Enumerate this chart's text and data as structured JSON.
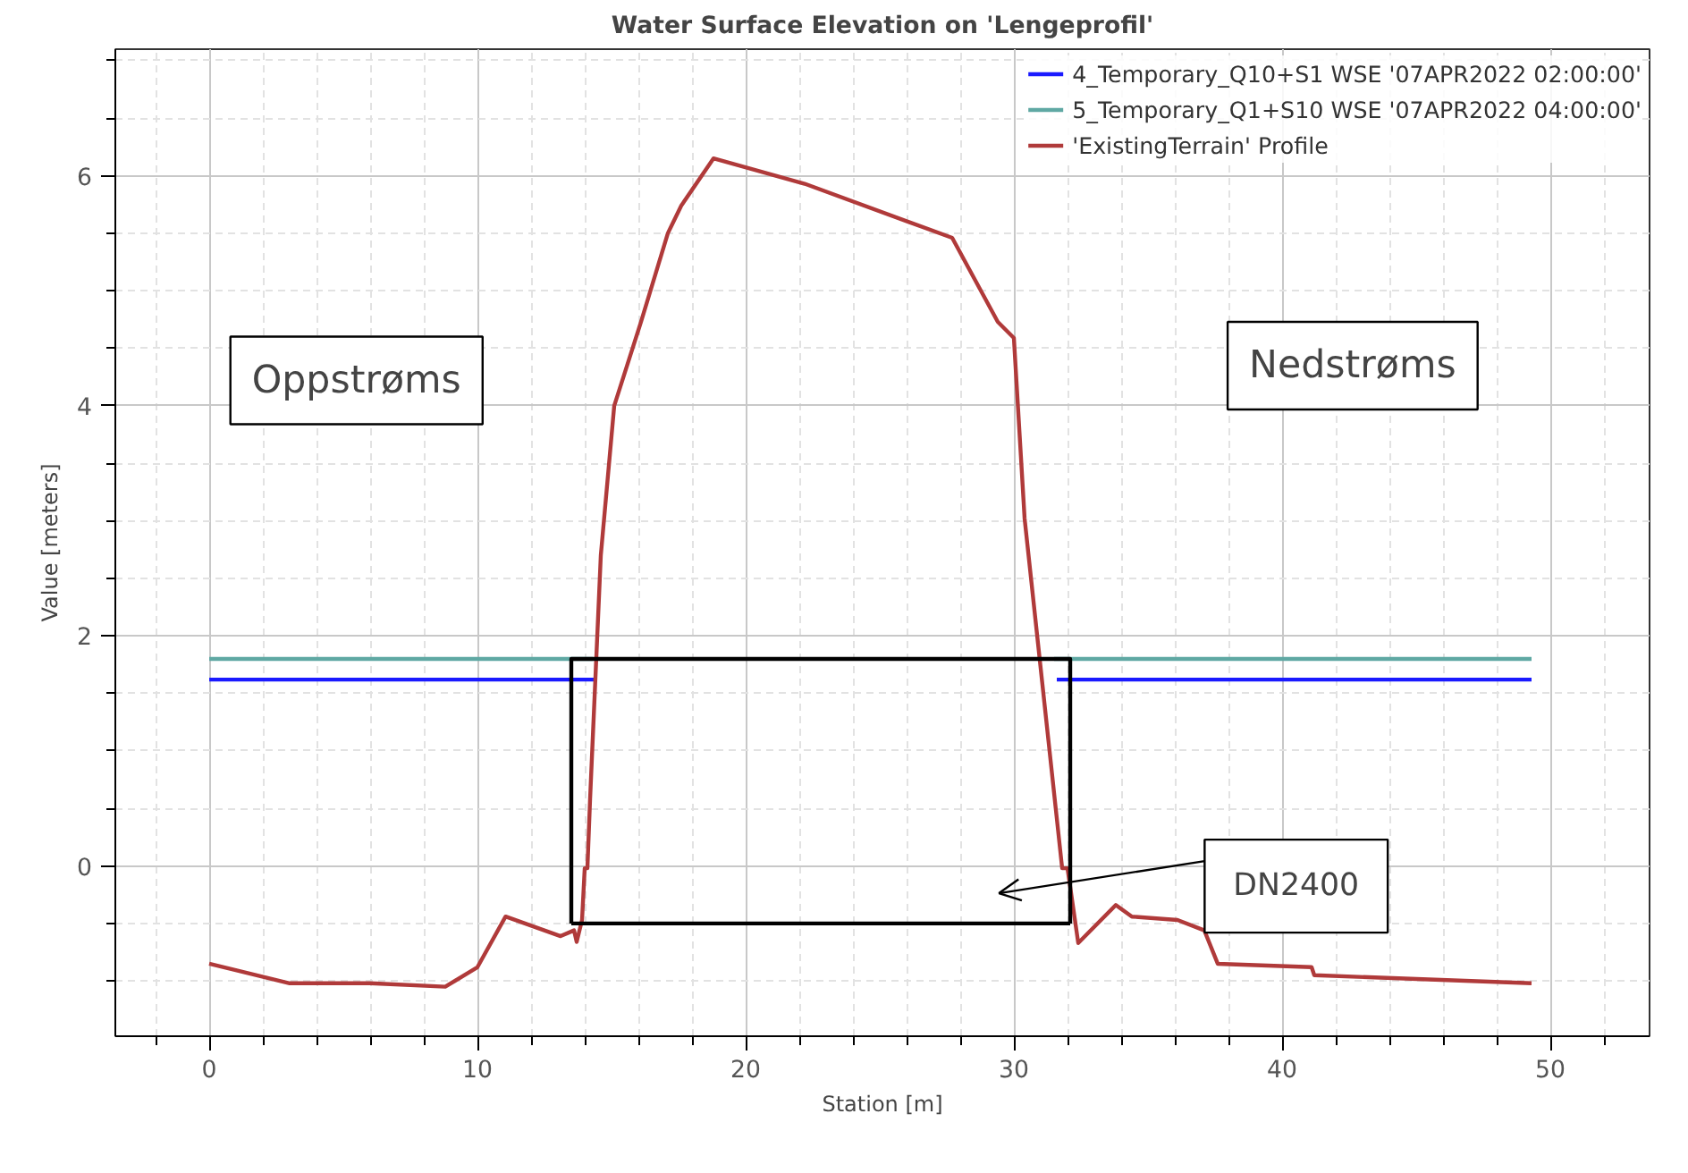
{
  "chart_data": {
    "type": "line",
    "title": "Water Surface Elevation on 'Lengeprofil'",
    "xlabel": "Station [m]",
    "ylabel": "Value [meters]",
    "xlim": [
      -3.5,
      53.7
    ],
    "ylim": [
      -1.48,
      7.1
    ],
    "xticks": [
      {
        "value": -2,
        "label": null
      },
      0,
      {
        "value": 2,
        "label": null
      },
      {
        "value": 4,
        "label": null
      },
      {
        "value": 6,
        "label": null
      },
      {
        "value": 8,
        "label": null
      },
      10,
      {
        "value": 12,
        "label": null
      },
      {
        "value": 14,
        "label": null
      },
      {
        "value": 16,
        "label": null
      },
      {
        "value": 18,
        "label": null
      },
      20,
      {
        "value": 22,
        "label": null
      },
      {
        "value": 24,
        "label": null
      },
      {
        "value": 26,
        "label": null
      },
      {
        "value": 28,
        "label": null
      },
      30,
      {
        "value": 32,
        "label": null
      },
      {
        "value": 34,
        "label": null
      },
      {
        "value": 36,
        "label": null
      },
      {
        "value": 38,
        "label": null
      },
      40,
      {
        "value": 42,
        "label": null
      },
      {
        "value": 44,
        "label": null
      },
      {
        "value": 46,
        "label": null
      },
      {
        "value": 48,
        "label": null
      },
      50,
      {
        "value": 52,
        "label": null
      }
    ],
    "yticks": [
      {
        "value": -1,
        "label": null
      },
      {
        "value": -0.5,
        "label": null
      },
      0,
      {
        "value": 0.5,
        "label": null
      },
      {
        "value": 1,
        "label": null
      },
      {
        "value": 1.5,
        "label": null
      },
      2,
      {
        "value": 2.5,
        "label": null
      },
      {
        "value": 3,
        "label": null
      },
      {
        "value": 3.5,
        "label": null
      },
      4,
      {
        "value": 4.5,
        "label": null
      },
      {
        "value": 5,
        "label": null
      },
      {
        "value": 5.5,
        "label": null
      },
      6,
      {
        "value": 6.5,
        "label": null
      },
      {
        "value": 7,
        "label": null
      }
    ],
    "grid": true,
    "legend": "top right",
    "line_style": "solid",
    "marker": "none",
    "series": [
      {
        "name": "4_Temporary_Q10+S1 WSE '07APR2022 02:00:00'",
        "color": "#1a1aff",
        "x": [
          0,
          14.4,
          23,
          31.6,
          49.3
        ],
        "values": [
          1.62,
          1.62,
          null,
          1.62,
          1.62
        ]
      },
      {
        "name": "5_Temporary_Q1+S10 WSE '07APR2022 04:00:00'",
        "color": "#5fa8a3",
        "x": [
          0,
          14.3,
          23,
          31.5,
          49.3
        ],
        "values": [
          1.8,
          1.8,
          null,
          1.8,
          1.8
        ]
      },
      {
        "name": "'ExistingTerrain' Profile",
        "color": "#b03a3a",
        "x": [
          0,
          3,
          6,
          8.8,
          10,
          11.05,
          13.1,
          13.6,
          13.7,
          13.9,
          14.0,
          14.1,
          14.2,
          14.6,
          15.1,
          16.1,
          17.1,
          17.6,
          18.8,
          22.2,
          27.7,
          29.4,
          30.0,
          30.4,
          31.8,
          32.0,
          32.4,
          33.8,
          34.4,
          36.1,
          37.1,
          37.6,
          41.1,
          41.2,
          49.3
        ],
        "values": [
          -0.85,
          -1.02,
          -1.02,
          -1.05,
          -0.88,
          -0.44,
          -0.61,
          -0.56,
          -0.66,
          -0.47,
          -0.02,
          -0.02,
          0.58,
          2.7,
          4.0,
          4.73,
          5.5,
          5.74,
          6.15,
          5.93,
          5.46,
          4.73,
          4.59,
          3.02,
          -0.02,
          -0.02,
          -0.67,
          -0.34,
          -0.44,
          -0.47,
          -0.56,
          -0.85,
          -0.88,
          -0.95,
          -1.02
        ]
      },
      {
        "color": "#000000",
        "x": [
          13.5,
          13.5,
          32.1,
          32.1
        ],
        "values": [
          -0.5,
          1.8,
          1.8,
          -0.5
        ]
      },
      {
        "color": "#000000",
        "x": [
          13.5,
          32.1
        ],
        "values": [
          -0.5,
          -0.5
        ]
      }
    ],
    "annotations": [
      "Oppstrøms",
      "Nedstrøms",
      "DN2400"
    ]
  }
}
